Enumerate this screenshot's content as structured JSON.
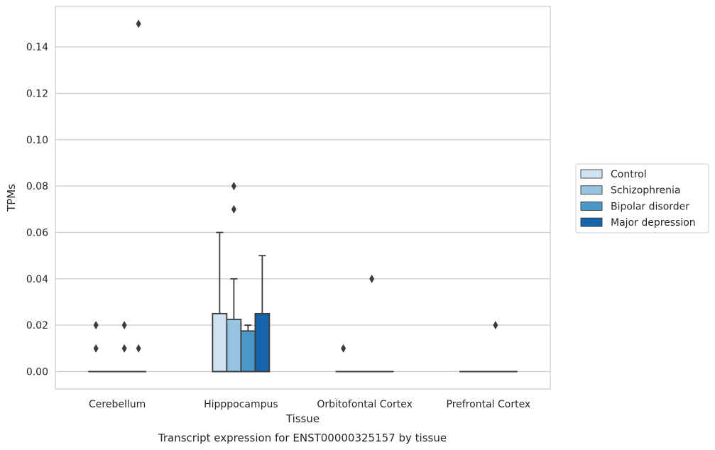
{
  "chart_data": {
    "type": "boxplot",
    "caption": "Transcript expression for ENST00000325157 by tissue",
    "xlabel": "Tissue",
    "ylabel": "TPMs",
    "ylim": [
      -0.0075,
      0.1575
    ],
    "yticks": [
      "0.00",
      "0.02",
      "0.04",
      "0.06",
      "0.08",
      "0.10",
      "0.12",
      "0.14"
    ],
    "categories": [
      "Cerebellum",
      "Hipppocampus",
      "Orbitofontal Cortex",
      "Prefrontal Cortex"
    ],
    "grid": true,
    "legend_position": "right",
    "series": [
      {
        "name": "Control",
        "color": "#d0e1f2",
        "boxes": [
          {
            "q1": 0,
            "median": 0,
            "q3": 0,
            "whislo": 0,
            "whishi": 0,
            "fliers": [
              0.02,
              0.01
            ]
          },
          {
            "q1": 0,
            "median": 0,
            "q3": 0.025,
            "whislo": 0,
            "whishi": 0.06,
            "fliers": []
          },
          {
            "q1": 0,
            "median": 0,
            "q3": 0,
            "whislo": 0,
            "whishi": 0,
            "fliers": [
              0.01
            ]
          },
          {
            "q1": 0,
            "median": 0,
            "q3": 0,
            "whislo": 0,
            "whishi": 0,
            "fliers": []
          }
        ]
      },
      {
        "name": "Schizophrenia",
        "color": "#94c4df",
        "boxes": [
          {
            "q1": 0,
            "median": 0,
            "q3": 0,
            "whislo": 0,
            "whishi": 0,
            "fliers": []
          },
          {
            "q1": 0,
            "median": 0,
            "q3": 0.0225,
            "whislo": 0,
            "whishi": 0.04,
            "fliers": [
              0.08,
              0.07
            ]
          },
          {
            "q1": 0,
            "median": 0,
            "q3": 0,
            "whislo": 0,
            "whishi": 0,
            "fliers": []
          },
          {
            "q1": 0,
            "median": 0,
            "q3": 0,
            "whislo": 0,
            "whishi": 0,
            "fliers": []
          }
        ]
      },
      {
        "name": "Bipolar disorder",
        "color": "#4a98c9",
        "boxes": [
          {
            "q1": 0,
            "median": 0,
            "q3": 0,
            "whislo": 0,
            "whishi": 0,
            "fliers": [
              0.02,
              0.01
            ]
          },
          {
            "q1": 0,
            "median": 0,
            "q3": 0.0175,
            "whislo": 0,
            "whishi": 0.02,
            "fliers": []
          },
          {
            "q1": 0,
            "median": 0,
            "q3": 0,
            "whislo": 0,
            "whishi": 0,
            "fliers": [
              0.04
            ]
          },
          {
            "q1": 0,
            "median": 0,
            "q3": 0,
            "whislo": 0,
            "whishi": 0,
            "fliers": [
              0.02
            ]
          }
        ]
      },
      {
        "name": "Major depression",
        "color": "#1764ab",
        "boxes": [
          {
            "q1": 0,
            "median": 0,
            "q3": 0,
            "whislo": 0,
            "whishi": 0,
            "fliers": [
              0.15,
              0.01
            ]
          },
          {
            "q1": 0,
            "median": 0,
            "q3": 0.025,
            "whislo": 0,
            "whishi": 0.05,
            "fliers": []
          },
          {
            "q1": 0,
            "median": 0,
            "q3": 0,
            "whislo": 0,
            "whishi": 0,
            "fliers": []
          },
          {
            "q1": 0,
            "median": 0,
            "q3": 0,
            "whislo": 0,
            "whishi": 0,
            "fliers": []
          }
        ]
      }
    ]
  }
}
